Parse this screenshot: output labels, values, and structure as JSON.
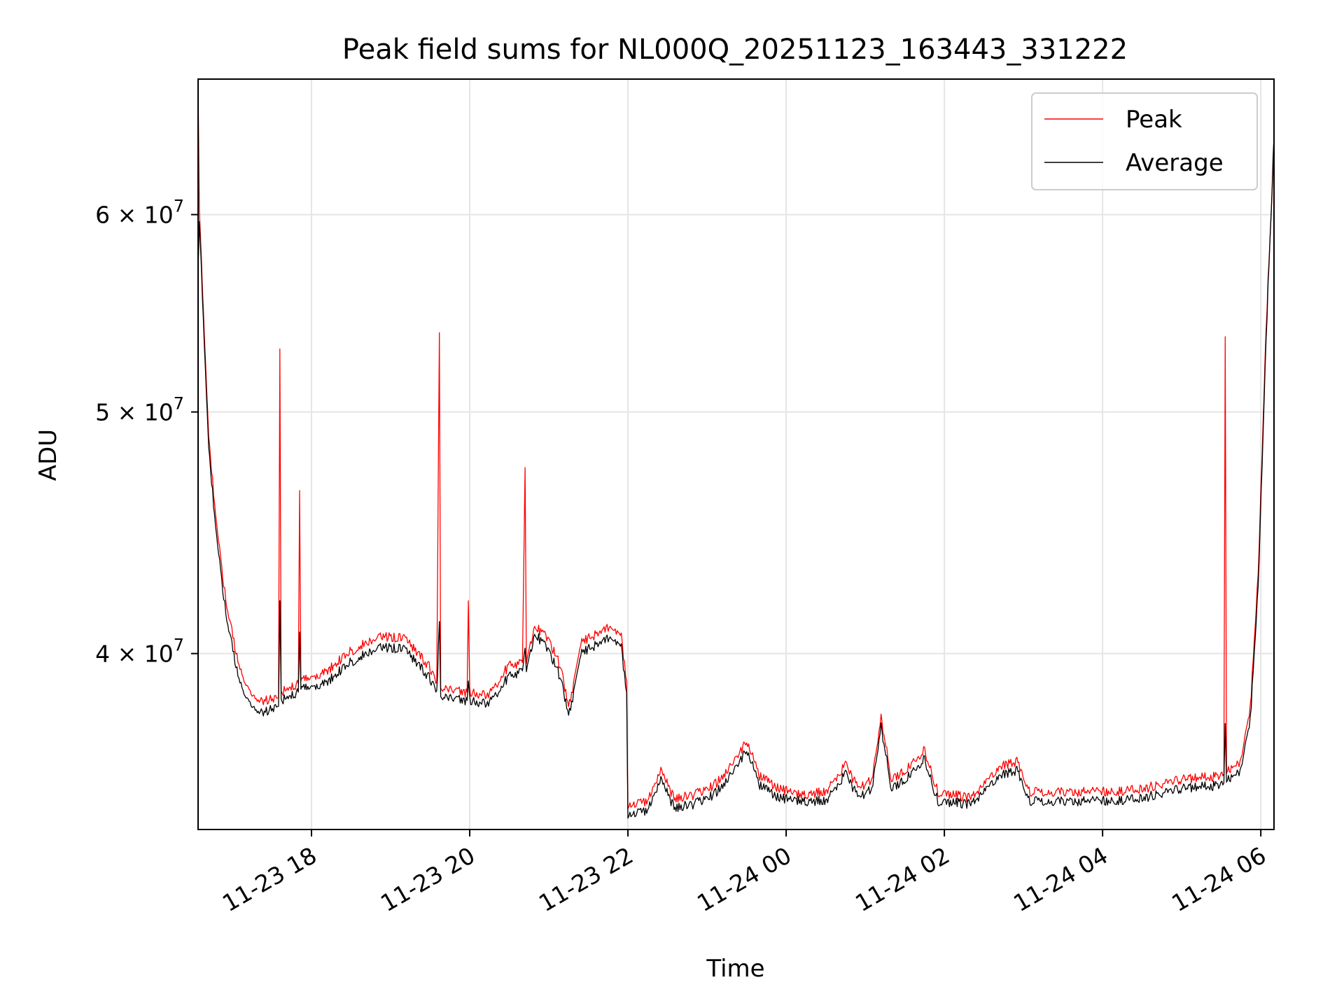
{
  "chart_data": {
    "type": "line",
    "title": "Peak field sums for NL000Q_20251123_163443_331222",
    "xlabel": "Time",
    "ylabel": "ADU",
    "yscale": "log",
    "xlim": [
      "2025-11-23 16:34",
      "2025-11-24 06:10"
    ],
    "ylim": [
      34000000,
      68000000
    ],
    "x_ticks": [
      {
        "t": "2025-11-23 18:00",
        "label": "11-23 18"
      },
      {
        "t": "2025-11-23 20:00",
        "label": "11-23 20"
      },
      {
        "t": "2025-11-23 22:00",
        "label": "11-23 22"
      },
      {
        "t": "2025-11-24 00:00",
        "label": "11-24 00"
      },
      {
        "t": "2025-11-24 02:00",
        "label": "11-24 02"
      },
      {
        "t": "2025-11-24 04:00",
        "label": "11-24 04"
      },
      {
        "t": "2025-11-24 06:00",
        "label": "11-24 06"
      }
    ],
    "y_ticks": [
      {
        "value": 40000000,
        "mantissa": "4",
        "base": "10",
        "exp": "7"
      },
      {
        "value": 50000000,
        "mantissa": "5",
        "base": "10",
        "exp": "7"
      },
      {
        "value": 60000000,
        "mantissa": "6",
        "base": "10",
        "exp": "7"
      }
    ],
    "grid": true,
    "legend_position": "top-right",
    "series": [
      {
        "name": "Peak",
        "color": "#ff0000",
        "points": [
          [
            "2025-11-23 16:34",
            67500000
          ],
          [
            "2025-11-23 16:35",
            60000000
          ],
          [
            "2025-11-23 16:38",
            55000000
          ],
          [
            "2025-11-23 16:42",
            49000000
          ],
          [
            "2025-11-23 16:48",
            45000000
          ],
          [
            "2025-11-23 16:55",
            42000000
          ],
          [
            "2025-11-23 17:05",
            39500000
          ],
          [
            "2025-11-23 17:15",
            38400000
          ],
          [
            "2025-11-23 17:25",
            38300000
          ],
          [
            "2025-11-23 17:35",
            38400000
          ],
          [
            "2025-11-23 17:36",
            53000000
          ],
          [
            "2025-11-23 17:37",
            38600000
          ],
          [
            "2025-11-23 17:50",
            38900000
          ],
          [
            "2025-11-23 17:51",
            46500000
          ],
          [
            "2025-11-23 17:52",
            39000000
          ],
          [
            "2025-11-23 18:10",
            39300000
          ],
          [
            "2025-11-23 18:30",
            40100000
          ],
          [
            "2025-11-23 18:50",
            40600000
          ],
          [
            "2025-11-23 19:10",
            40600000
          ],
          [
            "2025-11-23 19:30",
            39500000
          ],
          [
            "2025-11-23 19:35",
            38800000
          ],
          [
            "2025-11-23 19:37",
            53800000
          ],
          [
            "2025-11-23 19:38",
            38800000
          ],
          [
            "2025-11-23 19:58",
            38600000
          ],
          [
            "2025-11-23 19:59",
            42000000
          ],
          [
            "2025-11-23 20:00",
            38600000
          ],
          [
            "2025-11-23 20:15",
            38500000
          ],
          [
            "2025-11-23 20:30",
            39600000
          ],
          [
            "2025-11-23 20:40",
            39600000
          ],
          [
            "2025-11-23 20:42",
            47500000
          ],
          [
            "2025-11-23 20:43",
            39800000
          ],
          [
            "2025-11-23 20:50",
            41000000
          ],
          [
            "2025-11-23 21:00",
            40500000
          ],
          [
            "2025-11-23 21:10",
            39400000
          ],
          [
            "2025-11-23 21:15",
            38000000
          ],
          [
            "2025-11-23 21:25",
            40400000
          ],
          [
            "2025-11-23 21:35",
            40700000
          ],
          [
            "2025-11-23 21:45",
            41000000
          ],
          [
            "2025-11-23 21:55",
            40600000
          ],
          [
            "2025-11-23 21:59",
            39000000
          ],
          [
            "2025-11-23 22:00",
            34800000
          ],
          [
            "2025-11-23 22:15",
            34900000
          ],
          [
            "2025-11-23 22:25",
            35900000
          ],
          [
            "2025-11-23 22:35",
            35000000
          ],
          [
            "2025-11-23 22:50",
            35100000
          ],
          [
            "2025-11-23 23:05",
            35400000
          ],
          [
            "2025-11-23 23:15",
            35900000
          ],
          [
            "2025-11-23 23:25",
            36500000
          ],
          [
            "2025-11-23 23:30",
            36900000
          ],
          [
            "2025-11-23 23:40",
            35700000
          ],
          [
            "2025-11-23 23:55",
            35300000
          ],
          [
            "2025-11-24 00:10",
            35100000
          ],
          [
            "2025-11-24 00:30",
            35200000
          ],
          [
            "2025-11-24 00:45",
            36100000
          ],
          [
            "2025-11-24 00:55",
            35300000
          ],
          [
            "2025-11-24 01:05",
            35600000
          ],
          [
            "2025-11-24 01:12",
            37700000
          ],
          [
            "2025-11-24 01:20",
            35600000
          ],
          [
            "2025-11-24 01:35",
            36100000
          ],
          [
            "2025-11-24 01:45",
            36600000
          ],
          [
            "2025-11-24 01:55",
            35200000
          ],
          [
            "2025-11-24 02:20",
            35000000
          ],
          [
            "2025-11-24 02:45",
            36100000
          ],
          [
            "2025-11-24 02:55",
            36200000
          ],
          [
            "2025-11-24 03:05",
            35200000
          ],
          [
            "2025-11-24 03:30",
            35200000
          ],
          [
            "2025-11-24 04:00",
            35200000
          ],
          [
            "2025-11-24 04:30",
            35300000
          ],
          [
            "2025-11-24 05:00",
            35600000
          ],
          [
            "2025-11-24 05:25",
            35700000
          ],
          [
            "2025-11-24 05:32",
            35800000
          ],
          [
            "2025-11-24 05:33",
            53600000
          ],
          [
            "2025-11-24 05:34",
            35900000
          ],
          [
            "2025-11-24 05:45",
            36200000
          ],
          [
            "2025-11-24 05:52",
            38000000
          ],
          [
            "2025-11-24 05:58",
            43000000
          ],
          [
            "2025-11-24 06:04",
            54000000
          ],
          [
            "2025-11-24 06:10",
            64000000
          ]
        ]
      },
      {
        "name": "Average",
        "color": "#000000",
        "points": [
          [
            "2025-11-23 16:34",
            57000000
          ],
          [
            "2025-11-23 16:35",
            59500000
          ],
          [
            "2025-11-23 16:38",
            54500000
          ],
          [
            "2025-11-23 16:42",
            48500000
          ],
          [
            "2025-11-23 16:48",
            44500000
          ],
          [
            "2025-11-23 16:55",
            41500000
          ],
          [
            "2025-11-23 17:05",
            39000000
          ],
          [
            "2025-11-23 17:15",
            38000000
          ],
          [
            "2025-11-23 17:25",
            37900000
          ],
          [
            "2025-11-23 17:35",
            38100000
          ],
          [
            "2025-11-23 17:36",
            42000000
          ],
          [
            "2025-11-23 17:37",
            38300000
          ],
          [
            "2025-11-23 17:50",
            38600000
          ],
          [
            "2025-11-23 17:51",
            40800000
          ],
          [
            "2025-11-23 17:52",
            38700000
          ],
          [
            "2025-11-23 18:10",
            38900000
          ],
          [
            "2025-11-23 18:30",
            39700000
          ],
          [
            "2025-11-23 18:50",
            40200000
          ],
          [
            "2025-11-23 19:10",
            40200000
          ],
          [
            "2025-11-23 19:30",
            39100000
          ],
          [
            "2025-11-23 19:35",
            38500000
          ],
          [
            "2025-11-23 19:37",
            41200000
          ],
          [
            "2025-11-23 19:38",
            38500000
          ],
          [
            "2025-11-23 19:58",
            38300000
          ],
          [
            "2025-11-23 19:59",
            39000000
          ],
          [
            "2025-11-23 20:00",
            38300000
          ],
          [
            "2025-11-23 20:15",
            38200000
          ],
          [
            "2025-11-23 20:30",
            39200000
          ],
          [
            "2025-11-23 20:40",
            39300000
          ],
          [
            "2025-11-23 20:42",
            40200000
          ],
          [
            "2025-11-23 20:43",
            39500000
          ],
          [
            "2025-11-23 20:50",
            40700000
          ],
          [
            "2025-11-23 21:00",
            40100000
          ],
          [
            "2025-11-23 21:10",
            39000000
          ],
          [
            "2025-11-23 21:15",
            37700000
          ],
          [
            "2025-11-23 21:25",
            40000000
          ],
          [
            "2025-11-23 21:35",
            40300000
          ],
          [
            "2025-11-23 21:45",
            40600000
          ],
          [
            "2025-11-23 21:55",
            40200000
          ],
          [
            "2025-11-23 21:59",
            38600000
          ],
          [
            "2025-11-23 22:00",
            34500000
          ],
          [
            "2025-11-23 22:15",
            34600000
          ],
          [
            "2025-11-23 22:25",
            35600000
          ],
          [
            "2025-11-23 22:35",
            34700000
          ],
          [
            "2025-11-23 22:50",
            34800000
          ],
          [
            "2025-11-23 23:05",
            35100000
          ],
          [
            "2025-11-23 23:15",
            35600000
          ],
          [
            "2025-11-23 23:25",
            36200000
          ],
          [
            "2025-11-23 23:30",
            36600000
          ],
          [
            "2025-11-23 23:40",
            35400000
          ],
          [
            "2025-11-23 23:55",
            35000000
          ],
          [
            "2025-11-24 00:10",
            34900000
          ],
          [
            "2025-11-24 00:30",
            34900000
          ],
          [
            "2025-11-24 00:45",
            35800000
          ],
          [
            "2025-11-24 00:55",
            35000000
          ],
          [
            "2025-11-24 01:05",
            35300000
          ],
          [
            "2025-11-24 01:12",
            37400000
          ],
          [
            "2025-11-24 01:20",
            35300000
          ],
          [
            "2025-11-24 01:35",
            35800000
          ],
          [
            "2025-11-24 01:45",
            36300000
          ],
          [
            "2025-11-24 01:55",
            34900000
          ],
          [
            "2025-11-24 02:20",
            34800000
          ],
          [
            "2025-11-24 02:45",
            35800000
          ],
          [
            "2025-11-24 02:55",
            35900000
          ],
          [
            "2025-11-24 03:05",
            34900000
          ],
          [
            "2025-11-24 03:30",
            34900000
          ],
          [
            "2025-11-24 04:00",
            34900000
          ],
          [
            "2025-11-24 04:30",
            35000000
          ],
          [
            "2025-11-24 05:00",
            35300000
          ],
          [
            "2025-11-24 05:25",
            35400000
          ],
          [
            "2025-11-24 05:32",
            35500000
          ],
          [
            "2025-11-24 05:33",
            37500000
          ],
          [
            "2025-11-24 05:34",
            35600000
          ],
          [
            "2025-11-24 05:45",
            35900000
          ],
          [
            "2025-11-24 05:52",
            37600000
          ],
          [
            "2025-11-24 05:58",
            42500000
          ],
          [
            "2025-11-24 06:04",
            53500000
          ],
          [
            "2025-11-24 06:10",
            64500000
          ]
        ]
      }
    ]
  }
}
